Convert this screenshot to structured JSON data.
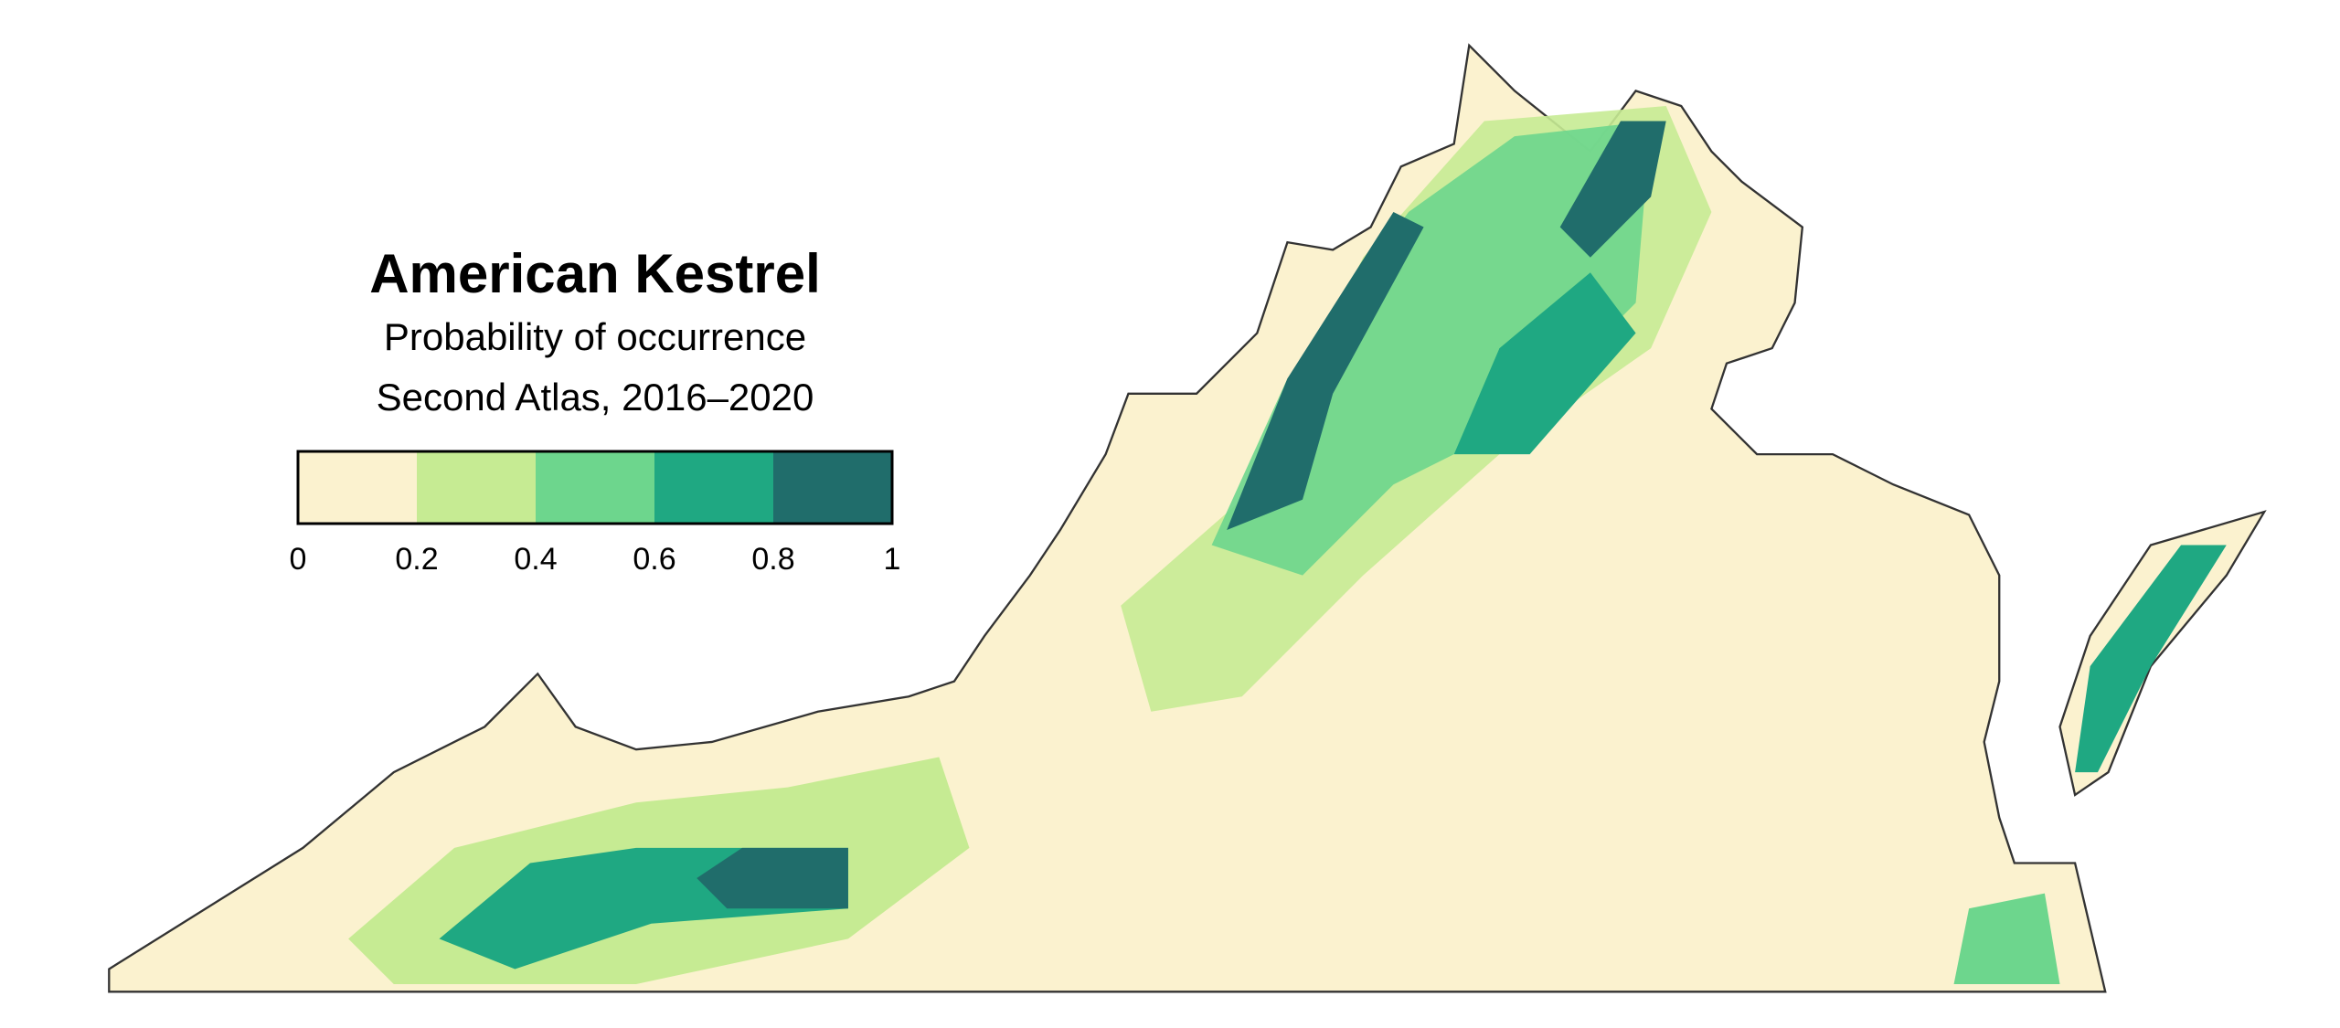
{
  "chart_data": {
    "type": "choropleth",
    "title": "American Kestrel",
    "subtitle": [
      "Probability of occurrence",
      "Second Atlas, 2016–2020"
    ],
    "legend": {
      "bins": [
        0,
        0.2,
        0.4,
        0.6,
        0.8,
        1
      ],
      "colors": [
        "#fbf2cf",
        "#c6eb93",
        "#6dd68d",
        "#1fa882",
        "#206d6b"
      ]
    }
  }
}
